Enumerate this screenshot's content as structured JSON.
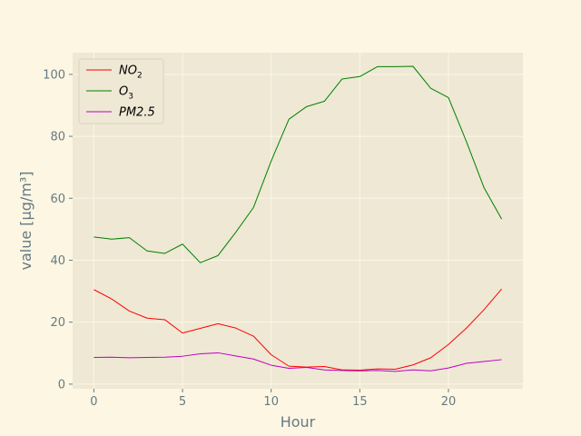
{
  "chart_data": {
    "type": "line",
    "title": "",
    "xlabel": "Hour",
    "ylabel": "value [µg/m³]",
    "xlim": [
      -1.2,
      24.2
    ],
    "ylim": [
      -1.5,
      107
    ],
    "xticks": [
      0,
      5,
      10,
      15,
      20
    ],
    "yticks": [
      0,
      20,
      40,
      60,
      80,
      100
    ],
    "grid": true,
    "legend_position": "top-left",
    "colors": {
      "figure_background": "#fdf6e3",
      "plot_background": "#eee8d5",
      "grid": "#fdf6e3",
      "text": "#657b83"
    },
    "x": [
      0,
      1,
      2,
      3,
      4,
      5,
      6,
      7,
      8,
      9,
      10,
      11,
      12,
      13,
      14,
      15,
      16,
      17,
      18,
      19,
      20,
      21,
      22,
      23
    ],
    "series": [
      {
        "name": "NO2",
        "legend_main": "NO",
        "legend_sub": "2",
        "color": "#ff0000",
        "values": [
          30.5,
          27.5,
          23.6,
          21.3,
          20.8,
          16.5,
          18.0,
          19.5,
          18.1,
          15.5,
          9.5,
          5.8,
          5.5,
          5.7,
          4.6,
          4.5,
          4.9,
          4.8,
          6.2,
          8.5,
          12.8,
          18.0,
          24.0,
          30.7
        ],
        "legend_label": "NO₂"
      },
      {
        "name": "O3",
        "legend_main": "O",
        "legend_sub": "3",
        "color": "#008000",
        "values": [
          47.5,
          46.8,
          47.3,
          43.0,
          42.2,
          45.2,
          39.2,
          41.5,
          49.0,
          57.0,
          72.0,
          85.5,
          89.6,
          91.3,
          98.5,
          99.3,
          102.5,
          102.5,
          102.6,
          95.5,
          92.5,
          78.5,
          63.5,
          53.3
        ],
        "legend_label": "O₃"
      },
      {
        "name": "PM2.5",
        "legend_main": "PM2.5",
        "legend_sub": "",
        "color": "#bf00bf",
        "values": [
          8.6,
          8.7,
          8.5,
          8.6,
          8.7,
          9.0,
          9.8,
          10.1,
          9.1,
          8.1,
          6.1,
          5.1,
          5.4,
          4.6,
          4.4,
          4.3,
          4.4,
          4.1,
          4.6,
          4.3,
          5.2,
          6.7,
          7.3,
          7.9
        ],
        "legend_label": "PM2.5"
      }
    ]
  }
}
